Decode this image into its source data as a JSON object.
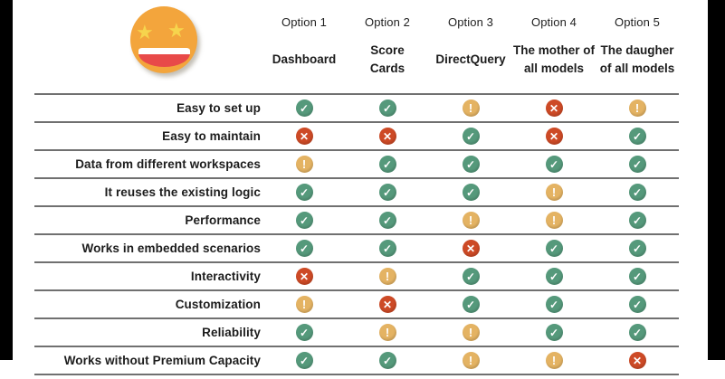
{
  "slide": {
    "background": "#ffffff",
    "side_bar_color": "#000000",
    "rule_color": "#707070"
  },
  "emoji": {
    "name": "star-struck-emoji",
    "face_color": "#F3A53C",
    "star_color": "#F6D44D",
    "mouth_color": "#E84A49",
    "teeth_color": "#ffffff"
  },
  "table": {
    "columns": [
      {
        "option": "Option 1",
        "name": "Dashboard"
      },
      {
        "option": "Option 2",
        "name": "Score\nCards"
      },
      {
        "option": "Option 3",
        "name": "DirectQuery"
      },
      {
        "option": "Option 4",
        "name": "The mother of\nall models"
      },
      {
        "option": "Option 5",
        "name": "The daugher\nof all models"
      }
    ],
    "icons": {
      "check": {
        "glyph": "✓",
        "color": "#55997B",
        "semantic": "check-icon"
      },
      "cross": {
        "glyph": "✕",
        "color": "#CD4A26",
        "semantic": "cross-icon"
      },
      "warn": {
        "glyph": "!",
        "color": "#E4B363",
        "semantic": "warning-icon"
      }
    },
    "rows": [
      {
        "label": "Easy to set up",
        "values": [
          "check",
          "check",
          "warn",
          "cross",
          "warn"
        ]
      },
      {
        "label": "Easy to maintain",
        "values": [
          "cross",
          "cross",
          "check",
          "cross",
          "check"
        ]
      },
      {
        "label": "Data from different workspaces",
        "values": [
          "warn",
          "check",
          "check",
          "check",
          "check"
        ]
      },
      {
        "label": "It reuses the existing logic",
        "values": [
          "check",
          "check",
          "check",
          "warn",
          "check"
        ]
      },
      {
        "label": "Performance",
        "values": [
          "check",
          "check",
          "warn",
          "warn",
          "check"
        ]
      },
      {
        "label": "Works in embedded scenarios",
        "values": [
          "check",
          "check",
          "cross",
          "check",
          "check"
        ]
      },
      {
        "label": "Interactivity",
        "values": [
          "cross",
          "warn",
          "check",
          "check",
          "check"
        ]
      },
      {
        "label": "Customization",
        "values": [
          "warn",
          "cross",
          "check",
          "check",
          "check"
        ]
      },
      {
        "label": "Reliability",
        "values": [
          "check",
          "warn",
          "warn",
          "check",
          "check"
        ]
      },
      {
        "label": "Works without Premium Capacity",
        "values": [
          "check",
          "check",
          "warn",
          "warn",
          "cross"
        ]
      }
    ]
  }
}
